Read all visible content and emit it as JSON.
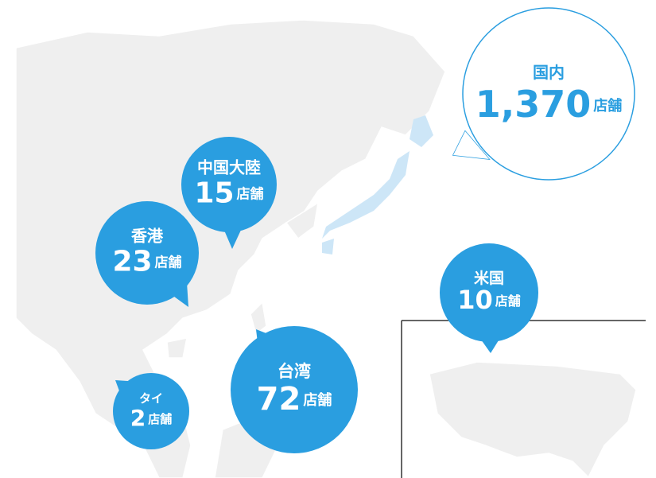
{
  "bubbles": [
    {
      "name": "国内",
      "count": "1,370",
      "unit": "店舗"
    },
    {
      "name": "中国大陸",
      "count": "15",
      "unit": "店舗"
    },
    {
      "name": "香港",
      "count": "23",
      "unit": "店舗"
    },
    {
      "name": "台湾",
      "count": "72",
      "unit": "店舗"
    },
    {
      "name": "タイ",
      "count": "2",
      "unit": "店舗"
    },
    {
      "name": "米国",
      "count": "10",
      "unit": "店舗"
    }
  ]
}
